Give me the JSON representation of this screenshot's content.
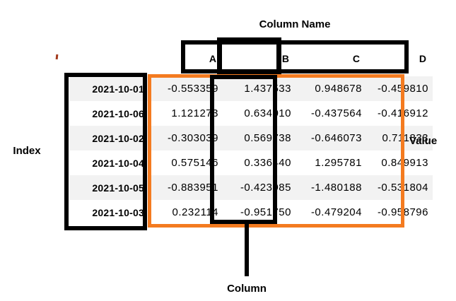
{
  "labels": {
    "column_name": "Column Name",
    "index": "Index",
    "value": "Value",
    "column": "Column"
  },
  "table": {
    "column_headers": [
      "A",
      "B",
      "C",
      "D"
    ],
    "rows": [
      {
        "index": "2021-10-01",
        "values": [
          "-0.553359",
          "1.437533",
          "0.948678",
          "-0.459810"
        ]
      },
      {
        "index": "2021-10-06",
        "values": [
          "1.121273",
          "0.634010",
          "-0.437564",
          "-0.416912"
        ]
      },
      {
        "index": "2021-10-02",
        "values": [
          "-0.303039",
          "0.569738",
          "-0.646073",
          "0.711833"
        ]
      },
      {
        "index": "2021-10-04",
        "values": [
          "0.575146",
          "0.336440",
          "1.295781",
          "0.849913"
        ]
      },
      {
        "index": "2021-10-05",
        "values": [
          "-0.883951",
          "-0.423985",
          "-1.480188",
          "-0.531804"
        ]
      },
      {
        "index": "2021-10-03",
        "values": [
          "0.232114",
          "-0.951750",
          "-0.479204",
          "-0.958796"
        ]
      }
    ]
  },
  "colors": {
    "annotation_black": "#000000",
    "annotation_orange": "#F47B20",
    "row_stripe": "#f2f2f2",
    "stray_mark_red": "#a33b1e"
  }
}
